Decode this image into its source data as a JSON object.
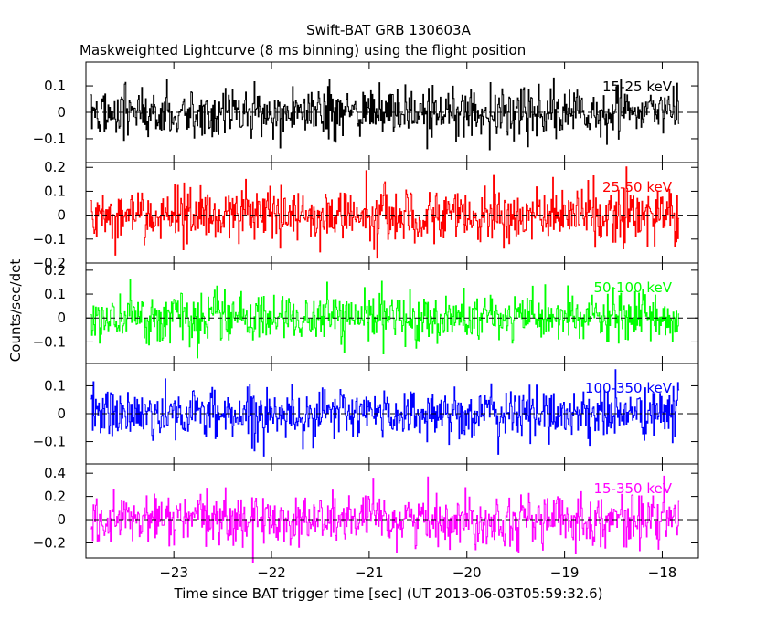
{
  "title": "Swift-BAT GRB 130603A",
  "subtitle": "Maskweighted Lightcurve (8 ms binning) using the flight position",
  "chart_data": {
    "type": "line",
    "ylabel": "Counts/sec/det",
    "xlabel": "Time since BAT trigger time [sec] (UT 2013-06-03T05:59:32.6)",
    "xlim": [
      -23.9,
      -17.63
    ],
    "data_range": [
      -23.85,
      -17.83
    ],
    "bin_size_sec": 0.008,
    "x_ticks": [
      -23,
      -22,
      -21,
      -20,
      -19,
      -18
    ],
    "x_tick_labels": [
      "−23",
      "−22",
      "−21",
      "−20",
      "−19",
      "−18"
    ],
    "grid": false,
    "panels": [
      {
        "band": "15-25 keV",
        "color": "#000000",
        "ylim": [
          -0.19,
          0.19
        ],
        "yticks": [
          -0.1,
          0,
          0.1
        ],
        "ytick_labels": [
          "−0.1",
          "0",
          "0.1"
        ],
        "noise_sigma": 0.045
      },
      {
        "band": "25-50 keV",
        "color": "#ff0000",
        "ylim": [
          -0.2,
          0.22
        ],
        "yticks": [
          -0.2,
          -0.1,
          0,
          0.1,
          0.2
        ],
        "ytick_labels": [
          "−0.2",
          "−0.1",
          "0",
          "0.1",
          "0.2"
        ],
        "noise_sigma": 0.055
      },
      {
        "band": "50-100 keV",
        "color": "#00ff00",
        "ylim": [
          -0.19,
          0.23
        ],
        "yticks": [
          -0.1,
          0,
          0.1,
          0.2
        ],
        "ytick_labels": [
          "−0.1",
          "0",
          "0.1",
          "0.2"
        ],
        "noise_sigma": 0.05
      },
      {
        "band": "100-350 keV",
        "color": "#0000ff",
        "ylim": [
          -0.18,
          0.18
        ],
        "yticks": [
          -0.1,
          0,
          0.1
        ],
        "ytick_labels": [
          "−0.1",
          "0",
          "0.1"
        ],
        "noise_sigma": 0.045
      },
      {
        "band": "15-350 keV",
        "color": "#ff00ff",
        "ylim": [
          -0.33,
          0.48
        ],
        "yticks": [
          -0.2,
          0,
          0.2,
          0.4
        ],
        "ytick_labels": [
          "−0.2",
          "0",
          "0.2",
          "0.4"
        ],
        "noise_sigma": 0.11
      }
    ]
  }
}
